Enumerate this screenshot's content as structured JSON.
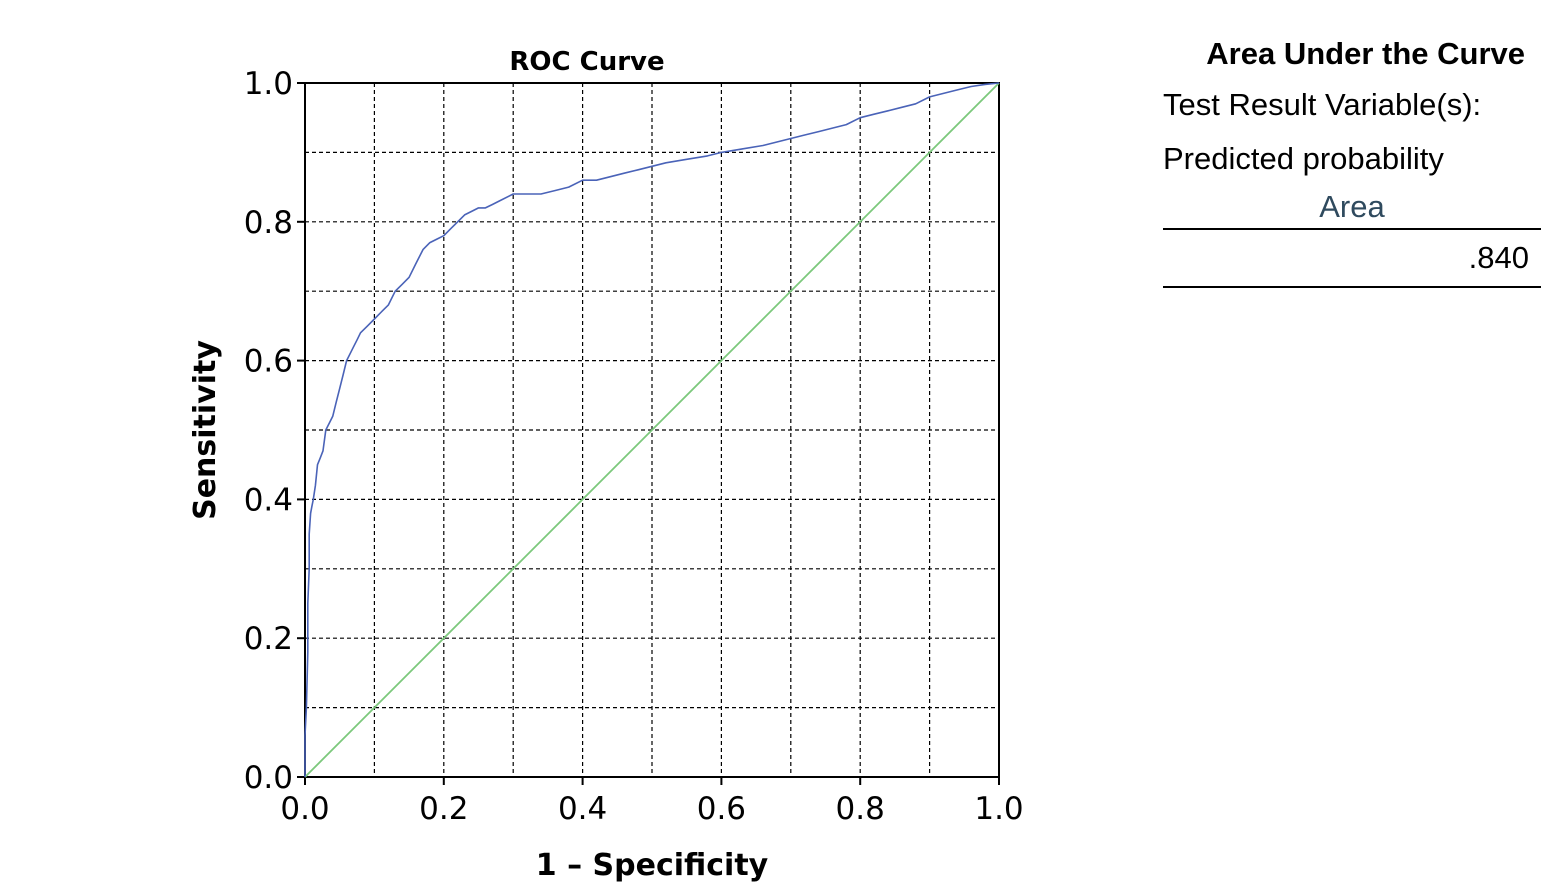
{
  "chart_data": {
    "type": "line",
    "title": "ROC Curve",
    "xlabel": "1 – Specificity",
    "ylabel": "Sensitivity",
    "xlim": [
      0,
      1
    ],
    "ylim": [
      0,
      1
    ],
    "xticks": [
      "0.0",
      "0.2",
      "0.4",
      "0.6",
      "0.8",
      "1.0"
    ],
    "yticks": [
      "0.0",
      "0.2",
      "0.4",
      "0.6",
      "0.8",
      "1.0"
    ],
    "grid": true,
    "series": [
      {
        "color": "#4a63b8",
        "x": [
          0,
          0,
          0.002,
          0.004,
          0.004,
          0.006,
          0.006,
          0.008,
          0.01,
          0.012,
          0.015,
          0.018,
          0.022,
          0.026,
          0.03,
          0.035,
          0.04,
          0.045,
          0.05,
          0.055,
          0.06,
          0.065,
          0.07,
          0.075,
          0.08,
          0.09,
          0.1,
          0.11,
          0.12,
          0.13,
          0.14,
          0.15,
          0.16,
          0.17,
          0.18,
          0.19,
          0.2,
          0.21,
          0.22,
          0.23,
          0.24,
          0.25,
          0.26,
          0.27,
          0.28,
          0.3,
          0.32,
          0.34,
          0.36,
          0.38,
          0.4,
          0.42,
          0.44,
          0.46,
          0.48,
          0.5,
          0.52,
          0.55,
          0.58,
          0.6,
          0.63,
          0.66,
          0.68,
          0.7,
          0.72,
          0.74,
          0.76,
          0.78,
          0.8,
          0.82,
          0.84,
          0.86,
          0.88,
          0.9,
          0.92,
          0.94,
          0.96,
          0.98,
          1.0
        ],
        "y": [
          0,
          0.06,
          0.1,
          0.18,
          0.25,
          0.3,
          0.35,
          0.38,
          0.39,
          0.4,
          0.42,
          0.45,
          0.46,
          0.47,
          0.5,
          0.51,
          0.52,
          0.54,
          0.56,
          0.58,
          0.6,
          0.61,
          0.62,
          0.63,
          0.64,
          0.65,
          0.66,
          0.67,
          0.68,
          0.7,
          0.71,
          0.72,
          0.74,
          0.76,
          0.77,
          0.775,
          0.78,
          0.79,
          0.8,
          0.81,
          0.815,
          0.82,
          0.82,
          0.825,
          0.83,
          0.84,
          0.84,
          0.84,
          0.845,
          0.85,
          0.86,
          0.86,
          0.865,
          0.87,
          0.875,
          0.88,
          0.885,
          0.89,
          0.895,
          0.9,
          0.905,
          0.91,
          0.915,
          0.92,
          0.925,
          0.93,
          0.935,
          0.94,
          0.95,
          0.955,
          0.96,
          0.965,
          0.97,
          0.98,
          0.985,
          0.99,
          0.995,
          0.998,
          1.0
        ]
      },
      {
        "color": "#7cc87c",
        "x": [
          0,
          1
        ],
        "y": [
          0,
          1
        ]
      }
    ]
  },
  "auc_table": {
    "title": "Area Under the Curve",
    "line1": "Test Result Variable(s):",
    "line2": "Predicted probability",
    "column_header": "Area",
    "value": ".840"
  }
}
